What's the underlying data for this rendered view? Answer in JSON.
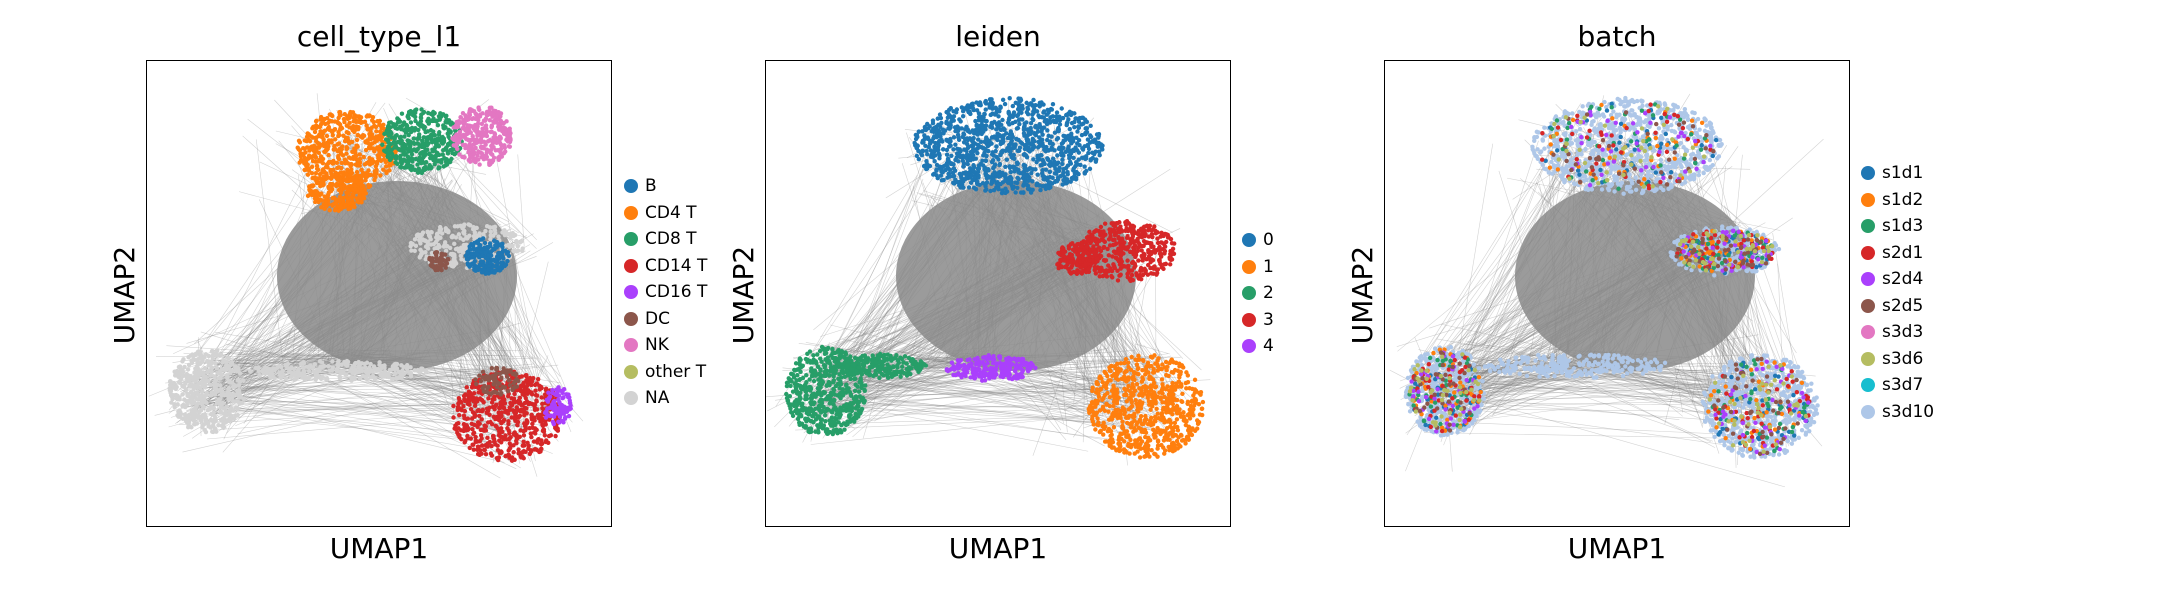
{
  "chart_data": [
    {
      "type": "scatter",
      "title": "cell_type_l1",
      "xlabel": "UMAP1",
      "ylabel": "UMAP2",
      "legend_position": "right",
      "legend": [
        {
          "name": "B",
          "color": "#1f77b4"
        },
        {
          "name": "CD4 T",
          "color": "#ff7f0e"
        },
        {
          "name": "CD8 T",
          "color": "#279e68"
        },
        {
          "name": "CD14 T",
          "color": "#d62728"
        },
        {
          "name": "CD16 T",
          "color": "#aa40fc"
        },
        {
          "name": "DC",
          "color": "#8c564b"
        },
        {
          "name": "NK",
          "color": "#e377c2"
        },
        {
          "name": "other T",
          "color": "#b5bd61"
        },
        {
          "name": "NA",
          "color": "#d3d3d3"
        }
      ]
    },
    {
      "type": "scatter",
      "title": "leiden",
      "xlabel": "UMAP1",
      "ylabel": "UMAP2",
      "legend_position": "right",
      "legend": [
        {
          "name": "0",
          "color": "#1f77b4"
        },
        {
          "name": "1",
          "color": "#ff7f0e"
        },
        {
          "name": "2",
          "color": "#279e68"
        },
        {
          "name": "3",
          "color": "#d62728"
        },
        {
          "name": "4",
          "color": "#aa40fc"
        }
      ]
    },
    {
      "type": "scatter",
      "title": "batch",
      "xlabel": "UMAP1",
      "ylabel": "UMAP2",
      "legend_position": "right",
      "legend": [
        {
          "name": "s1d1",
          "color": "#1f77b4"
        },
        {
          "name": "s1d2",
          "color": "#ff7f0e"
        },
        {
          "name": "s1d3",
          "color": "#279e68"
        },
        {
          "name": "s2d1",
          "color": "#d62728"
        },
        {
          "name": "s2d4",
          "color": "#aa40fc"
        },
        {
          "name": "s2d5",
          "color": "#8c564b"
        },
        {
          "name": "s3d3",
          "color": "#e377c2"
        },
        {
          "name": "s3d6",
          "color": "#b5bd61"
        },
        {
          "name": "s3d7",
          "color": "#17becf"
        },
        {
          "name": "s3d10",
          "color": "#aec7e8"
        }
      ]
    }
  ]
}
